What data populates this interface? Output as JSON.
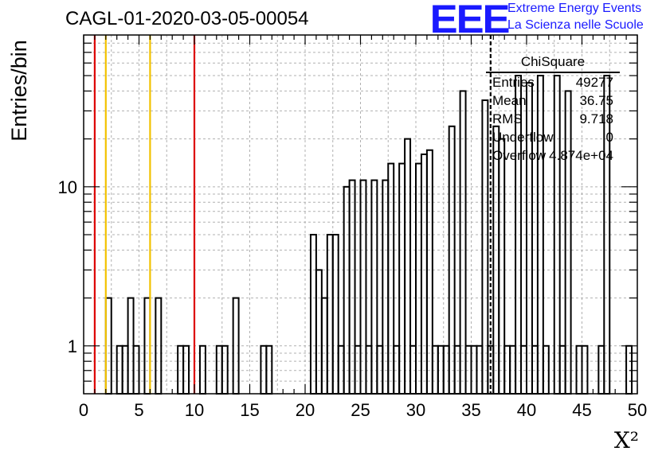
{
  "chart_data": {
    "type": "bar",
    "title": "CAGL-01-2020-03-05-00054",
    "xlabel": "X²",
    "ylabel": "Entries/bin",
    "xlim": [
      0,
      50
    ],
    "ylim": [
      0.5,
      90
    ],
    "y_scale": "log",
    "grid": true,
    "x_ticks": [
      "0",
      "5",
      "10",
      "15",
      "20",
      "25",
      "30",
      "35",
      "40",
      "45",
      "50"
    ],
    "y_ticks": [
      "1",
      "10"
    ],
    "bin_width": 0.5,
    "bins": [
      {
        "x": 2.0,
        "y": 2
      },
      {
        "x": 3.0,
        "y": 1
      },
      {
        "x": 3.5,
        "y": 1
      },
      {
        "x": 4.0,
        "y": 2
      },
      {
        "x": 4.5,
        "y": 1
      },
      {
        "x": 5.5,
        "y": 2
      },
      {
        "x": 6.5,
        "y": 2
      },
      {
        "x": 8.5,
        "y": 1
      },
      {
        "x": 9.0,
        "y": 1
      },
      {
        "x": 10.5,
        "y": 1
      },
      {
        "x": 12.0,
        "y": 1
      },
      {
        "x": 12.5,
        "y": 1
      },
      {
        "x": 13.5,
        "y": 2
      },
      {
        "x": 16.0,
        "y": 1
      },
      {
        "x": 16.5,
        "y": 1
      },
      {
        "x": 20.5,
        "y": 5
      },
      {
        "x": 21.0,
        "y": 3
      },
      {
        "x": 21.5,
        "y": 2
      },
      {
        "x": 22.0,
        "y": 5
      },
      {
        "x": 22.5,
        "y": 5
      },
      {
        "x": 23.0,
        "y": 1
      },
      {
        "x": 23.5,
        "y": 10
      },
      {
        "x": 24.0,
        "y": 11
      },
      {
        "x": 24.5,
        "y": 1
      },
      {
        "x": 25.0,
        "y": 11
      },
      {
        "x": 25.5,
        "y": 1
      },
      {
        "x": 26.0,
        "y": 11
      },
      {
        "x": 26.5,
        "y": 1
      },
      {
        "x": 27.0,
        "y": 11
      },
      {
        "x": 27.5,
        "y": 14
      },
      {
        "x": 28.0,
        "y": 1
      },
      {
        "x": 28.5,
        "y": 14
      },
      {
        "x": 29.0,
        "y": 20
      },
      {
        "x": 29.5,
        "y": 1
      },
      {
        "x": 30.0,
        "y": 14
      },
      {
        "x": 30.5,
        "y": 16
      },
      {
        "x": 31.0,
        "y": 17
      },
      {
        "x": 31.5,
        "y": 1
      },
      {
        "x": 32.0,
        "y": 1
      },
      {
        "x": 32.5,
        "y": 1
      },
      {
        "x": 33.0,
        "y": 24
      },
      {
        "x": 33.5,
        "y": 1
      },
      {
        "x": 34.0,
        "y": 40
      },
      {
        "x": 34.5,
        "y": 1
      },
      {
        "x": 35.0,
        "y": 1
      },
      {
        "x": 35.5,
        "y": 1
      },
      {
        "x": 36.0,
        "y": 35
      },
      {
        "x": 36.5,
        "y": 1
      },
      {
        "x": 37.0,
        "y": 24
      },
      {
        "x": 37.5,
        "y": 20
      },
      {
        "x": 38.0,
        "y": 1
      },
      {
        "x": 38.5,
        "y": 1
      },
      {
        "x": 39.0,
        "y": 50
      },
      {
        "x": 39.5,
        "y": 1
      },
      {
        "x": 40.0,
        "y": 45
      },
      {
        "x": 40.5,
        "y": 1
      },
      {
        "x": 41.0,
        "y": 50
      },
      {
        "x": 41.5,
        "y": 1
      },
      {
        "x": 42.5,
        "y": 50
      },
      {
        "x": 43.0,
        "y": 1
      },
      {
        "x": 43.5,
        "y": 40
      },
      {
        "x": 44.5,
        "y": 1
      },
      {
        "x": 45.0,
        "y": 1
      },
      {
        "x": 46.5,
        "y": 1
      },
      {
        "x": 47.0,
        "y": 50
      },
      {
        "x": 49.0,
        "y": 1
      }
    ],
    "vertical_lines": [
      {
        "x": 1,
        "color": "#dd0000",
        "style": "solid"
      },
      {
        "x": 2,
        "color": "#f2c200",
        "style": "solid"
      },
      {
        "x": 6,
        "color": "#f2c200",
        "style": "solid"
      },
      {
        "x": 10,
        "color": "#dd0000",
        "style": "solid"
      },
      {
        "x": 36.75,
        "color": "#000000",
        "style": "dashed"
      }
    ],
    "legend_position": "top-right"
  },
  "stats": {
    "name": "ChiSquare",
    "rows": [
      {
        "label": "Entries",
        "value": "49277"
      },
      {
        "label": "Mean",
        "value": "36.75"
      },
      {
        "label": "RMS",
        "value": "9.718"
      },
      {
        "label": "Underflow",
        "value": "0"
      },
      {
        "label": "Overflow",
        "value": "4.874e+04"
      }
    ]
  },
  "branding": {
    "logo_text": "EEE",
    "line1": "Extreme Energy Events",
    "line2": "La Scienza nelle Scuole",
    "color": "#1a1aff"
  }
}
